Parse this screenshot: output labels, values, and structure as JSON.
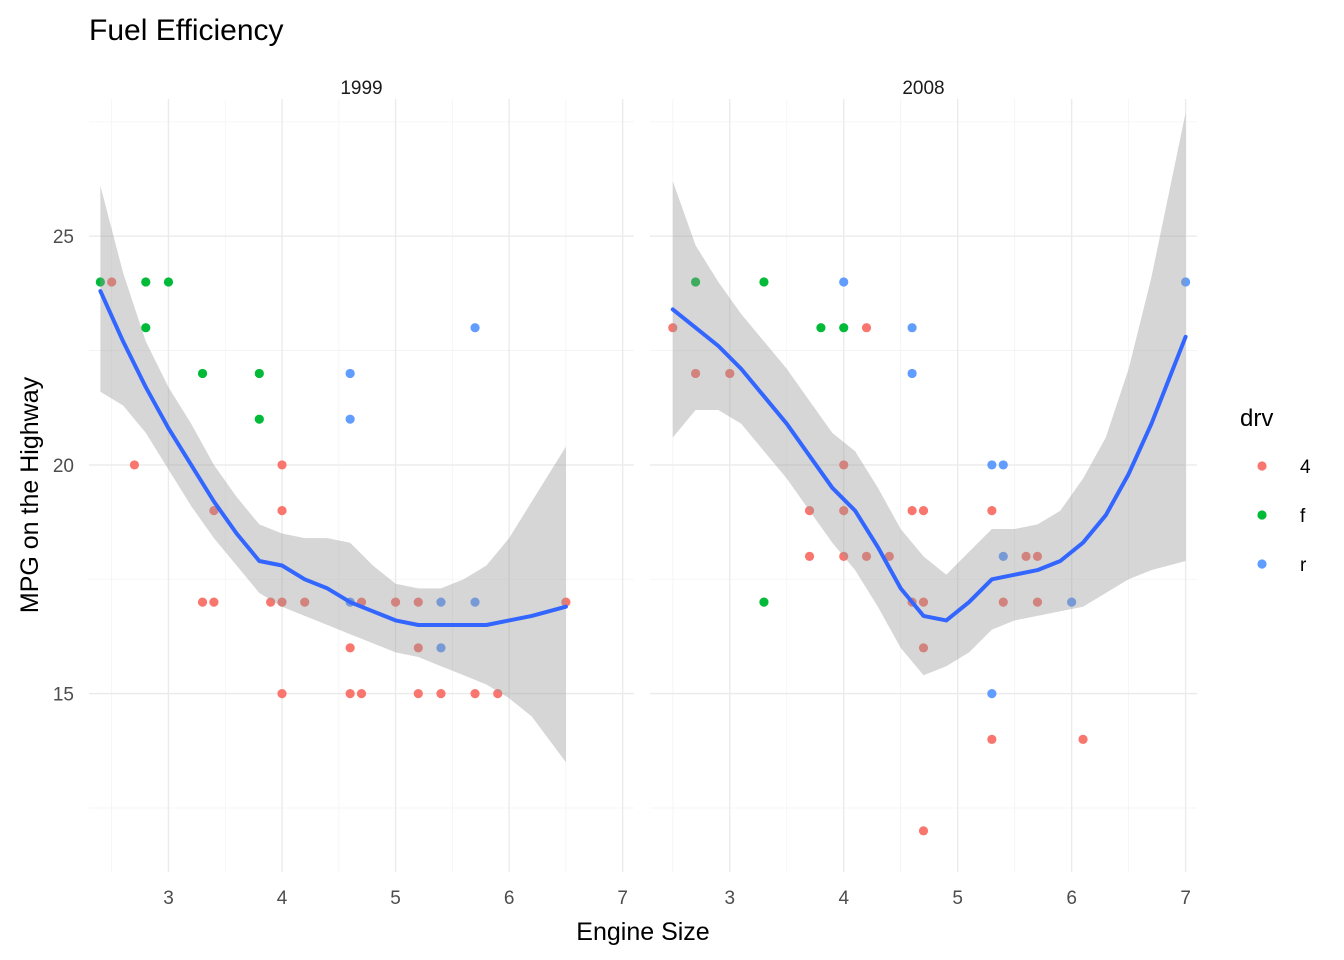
{
  "chart_data": {
    "type": "scatter",
    "title": "Fuel Efficiency",
    "xlabel": "Engine Size",
    "ylabel": "MPG on the Highway",
    "xlim": [
      2.3,
      7.1
    ],
    "ylim": [
      11.1,
      28.0
    ],
    "x_ticks": [
      3,
      4,
      5,
      6,
      7
    ],
    "y_ticks": [
      15,
      20,
      25
    ],
    "grid": true,
    "legend": {
      "title": "drv",
      "position": "right",
      "entries": [
        {
          "label": "4",
          "color": "#F8766D"
        },
        {
          "label": "f",
          "color": "#00BA38"
        },
        {
          "label": "r",
          "color": "#619CFF"
        }
      ]
    },
    "smooth_color": "#3366FF",
    "ribbon_color": "#999999",
    "facets": [
      {
        "label": "1999",
        "points": [
          {
            "x": 2.4,
            "y": 24,
            "drv": "f"
          },
          {
            "x": 2.5,
            "y": 24,
            "drv": "4"
          },
          {
            "x": 2.7,
            "y": 20,
            "drv": "4"
          },
          {
            "x": 2.8,
            "y": 24,
            "drv": "f"
          },
          {
            "x": 2.8,
            "y": 23,
            "drv": "f"
          },
          {
            "x": 3.0,
            "y": 24,
            "drv": "f"
          },
          {
            "x": 3.3,
            "y": 22,
            "drv": "f"
          },
          {
            "x": 3.3,
            "y": 17,
            "drv": "4"
          },
          {
            "x": 3.4,
            "y": 19,
            "drv": "4"
          },
          {
            "x": 3.4,
            "y": 17,
            "drv": "4"
          },
          {
            "x": 3.8,
            "y": 22,
            "drv": "f"
          },
          {
            "x": 3.8,
            "y": 21,
            "drv": "f"
          },
          {
            "x": 3.9,
            "y": 17,
            "drv": "4"
          },
          {
            "x": 4.0,
            "y": 20,
            "drv": "4"
          },
          {
            "x": 4.0,
            "y": 19,
            "drv": "4"
          },
          {
            "x": 4.0,
            "y": 17,
            "drv": "4"
          },
          {
            "x": 4.0,
            "y": 15,
            "drv": "4"
          },
          {
            "x": 4.2,
            "y": 17,
            "drv": "4"
          },
          {
            "x": 4.6,
            "y": 22,
            "drv": "r"
          },
          {
            "x": 4.6,
            "y": 21,
            "drv": "r"
          },
          {
            "x": 4.6,
            "y": 17,
            "drv": "r"
          },
          {
            "x": 4.6,
            "y": 16,
            "drv": "4"
          },
          {
            "x": 4.6,
            "y": 15,
            "drv": "4"
          },
          {
            "x": 4.7,
            "y": 17,
            "drv": "4"
          },
          {
            "x": 4.7,
            "y": 15,
            "drv": "4"
          },
          {
            "x": 5.0,
            "y": 17,
            "drv": "4"
          },
          {
            "x": 5.2,
            "y": 17,
            "drv": "4"
          },
          {
            "x": 5.2,
            "y": 16,
            "drv": "4"
          },
          {
            "x": 5.2,
            "y": 15,
            "drv": "4"
          },
          {
            "x": 5.4,
            "y": 17,
            "drv": "r"
          },
          {
            "x": 5.4,
            "y": 16,
            "drv": "r"
          },
          {
            "x": 5.4,
            "y": 15,
            "drv": "4"
          },
          {
            "x": 5.7,
            "y": 23,
            "drv": "r"
          },
          {
            "x": 5.7,
            "y": 17,
            "drv": "r"
          },
          {
            "x": 5.7,
            "y": 15,
            "drv": "4"
          },
          {
            "x": 5.9,
            "y": 15,
            "drv": "4"
          },
          {
            "x": 6.5,
            "y": 17,
            "drv": "4"
          }
        ],
        "smooth": {
          "x": [
            2.4,
            2.6,
            2.8,
            3.0,
            3.2,
            3.4,
            3.6,
            3.8,
            4.0,
            4.2,
            4.4,
            4.6,
            4.8,
            5.0,
            5.2,
            5.4,
            5.6,
            5.8,
            6.0,
            6.2,
            6.5
          ],
          "y": [
            23.8,
            22.7,
            21.7,
            20.8,
            20.0,
            19.2,
            18.5,
            17.9,
            17.8,
            17.5,
            17.3,
            17.0,
            16.8,
            16.6,
            16.5,
            16.5,
            16.5,
            16.5,
            16.6,
            16.7,
            16.9
          ],
          "lower": [
            21.6,
            21.3,
            20.7,
            19.9,
            19.1,
            18.4,
            17.8,
            17.2,
            16.9,
            16.7,
            16.5,
            16.3,
            16.1,
            15.9,
            15.8,
            15.6,
            15.4,
            15.2,
            14.9,
            14.5,
            13.5
          ],
          "upper": [
            26.1,
            24.2,
            22.7,
            21.7,
            20.9,
            20.0,
            19.3,
            18.7,
            18.5,
            18.4,
            18.4,
            18.3,
            17.8,
            17.4,
            17.3,
            17.3,
            17.5,
            17.8,
            18.4,
            19.2,
            20.4
          ]
        }
      },
      {
        "label": "2008",
        "points": [
          {
            "x": 2.5,
            "y": 23,
            "drv": "4"
          },
          {
            "x": 2.7,
            "y": 24,
            "drv": "f"
          },
          {
            "x": 2.7,
            "y": 22,
            "drv": "4"
          },
          {
            "x": 3.0,
            "y": 22,
            "drv": "4"
          },
          {
            "x": 3.3,
            "y": 24,
            "drv": "f"
          },
          {
            "x": 3.3,
            "y": 17,
            "drv": "f"
          },
          {
            "x": 3.7,
            "y": 19,
            "drv": "4"
          },
          {
            "x": 3.7,
            "y": 18,
            "drv": "4"
          },
          {
            "x": 3.8,
            "y": 23,
            "drv": "f"
          },
          {
            "x": 4.0,
            "y": 24,
            "drv": "r"
          },
          {
            "x": 4.0,
            "y": 23,
            "drv": "f"
          },
          {
            "x": 4.0,
            "y": 20,
            "drv": "4"
          },
          {
            "x": 4.0,
            "y": 19,
            "drv": "4"
          },
          {
            "x": 4.0,
            "y": 18,
            "drv": "4"
          },
          {
            "x": 4.2,
            "y": 23,
            "drv": "4"
          },
          {
            "x": 4.2,
            "y": 18,
            "drv": "4"
          },
          {
            "x": 4.4,
            "y": 18,
            "drv": "4"
          },
          {
            "x": 4.6,
            "y": 23,
            "drv": "r"
          },
          {
            "x": 4.6,
            "y": 22,
            "drv": "r"
          },
          {
            "x": 4.6,
            "y": 19,
            "drv": "4"
          },
          {
            "x": 4.6,
            "y": 17,
            "drv": "4"
          },
          {
            "x": 4.7,
            "y": 19,
            "drv": "4"
          },
          {
            "x": 4.7,
            "y": 17,
            "drv": "4"
          },
          {
            "x": 4.7,
            "y": 16,
            "drv": "4"
          },
          {
            "x": 4.7,
            "y": 12,
            "drv": "4"
          },
          {
            "x": 5.3,
            "y": 20,
            "drv": "r"
          },
          {
            "x": 5.3,
            "y": 19,
            "drv": "4"
          },
          {
            "x": 5.3,
            "y": 15,
            "drv": "r"
          },
          {
            "x": 5.3,
            "y": 14,
            "drv": "4"
          },
          {
            "x": 5.4,
            "y": 20,
            "drv": "r"
          },
          {
            "x": 5.4,
            "y": 18,
            "drv": "r"
          },
          {
            "x": 5.4,
            "y": 17,
            "drv": "4"
          },
          {
            "x": 5.6,
            "y": 18,
            "drv": "4"
          },
          {
            "x": 5.7,
            "y": 18,
            "drv": "4"
          },
          {
            "x": 5.7,
            "y": 17,
            "drv": "4"
          },
          {
            "x": 6.0,
            "y": 17,
            "drv": "r"
          },
          {
            "x": 6.1,
            "y": 14,
            "drv": "4"
          },
          {
            "x": 7.0,
            "y": 24,
            "drv": "r"
          }
        ],
        "smooth": {
          "x": [
            2.5,
            2.7,
            2.9,
            3.1,
            3.3,
            3.5,
            3.7,
            3.9,
            4.1,
            4.3,
            4.5,
            4.7,
            4.9,
            5.1,
            5.3,
            5.5,
            5.7,
            5.9,
            6.1,
            6.3,
            6.5,
            6.7,
            7.0
          ],
          "y": [
            23.4,
            23.0,
            22.6,
            22.1,
            21.5,
            20.9,
            20.2,
            19.5,
            19.0,
            18.2,
            17.3,
            16.7,
            16.6,
            17.0,
            17.5,
            17.6,
            17.7,
            17.9,
            18.3,
            18.9,
            19.8,
            20.9,
            22.8
          ],
          "lower": [
            20.6,
            21.2,
            21.2,
            20.9,
            20.3,
            19.7,
            19.0,
            18.3,
            17.7,
            16.9,
            16.0,
            15.4,
            15.6,
            15.9,
            16.4,
            16.6,
            16.7,
            16.8,
            16.9,
            17.2,
            17.5,
            17.7,
            17.9
          ],
          "upper": [
            26.2,
            24.8,
            24.0,
            23.3,
            22.7,
            22.1,
            21.4,
            20.7,
            20.3,
            19.5,
            18.6,
            18.0,
            17.6,
            18.1,
            18.6,
            18.6,
            18.7,
            19.0,
            19.7,
            20.6,
            22.1,
            24.1,
            27.7
          ]
        }
      }
    ]
  }
}
